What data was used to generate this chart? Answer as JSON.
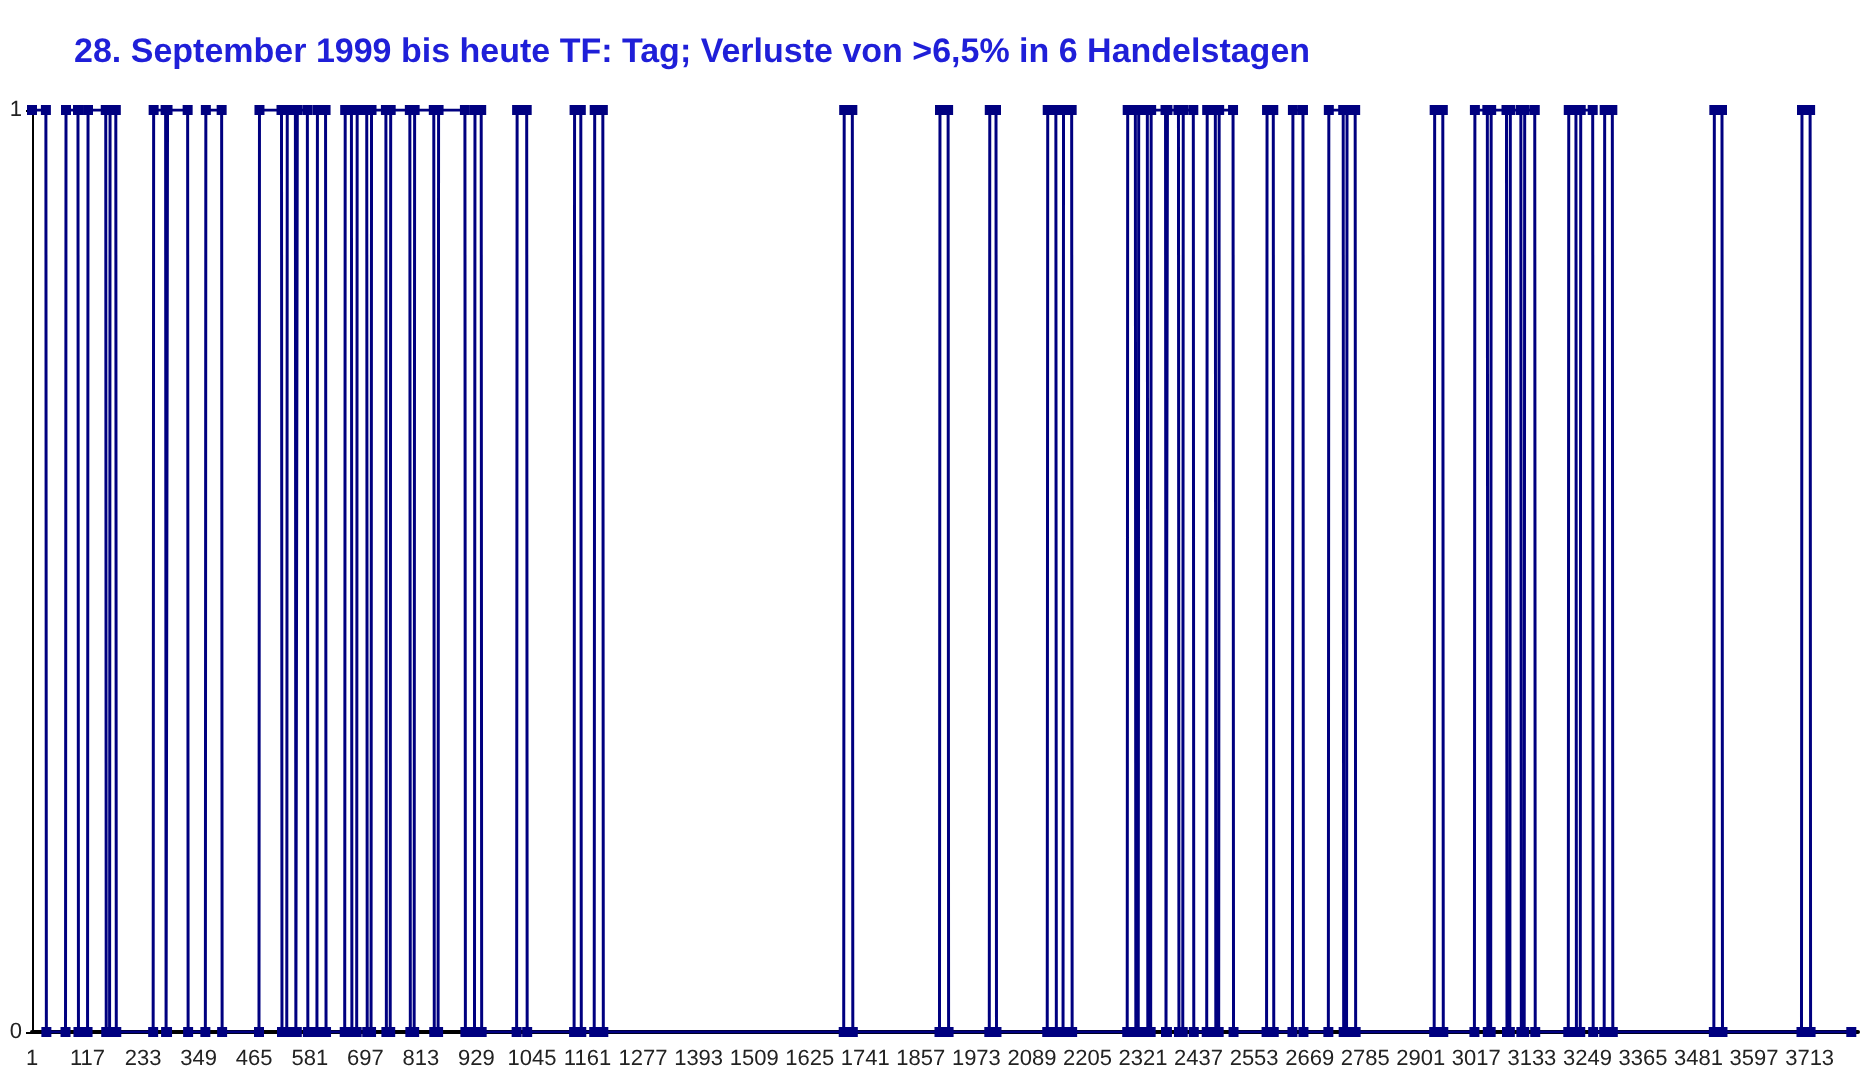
{
  "chart_data": {
    "type": "line",
    "title": "28. September 1999 bis heute TF: Tag; Verluste von >6,5% in 6 Handelstagen",
    "xlim": [
      1,
      3814
    ],
    "xticks": [
      1,
      117,
      233,
      349,
      465,
      581,
      697,
      813,
      929,
      1045,
      1161,
      1277,
      1393,
      1509,
      1625,
      1741,
      1857,
      1973,
      2089,
      2205,
      2321,
      2437,
      2553,
      2669,
      2785,
      2901,
      3017,
      3133,
      3249,
      3365,
      3481,
      3597,
      3713
    ],
    "ylim": [
      0,
      1
    ],
    "yticks": [
      0,
      1
    ],
    "grid": false,
    "marker": "square",
    "series": [
      {
        "color": "#000080",
        "x": [
          1,
          30,
          31,
          71,
          72,
          97,
          98,
          117,
          118,
          155,
          156,
          163,
          164,
          176,
          177,
          254,
          255,
          280,
          281,
          283,
          284,
          326,
          327,
          363,
          364,
          397,
          398,
          475,
          476,
          522,
          523,
          533,
          534,
          551,
          552,
          554,
          555,
          576,
          577,
          596,
          597,
          614,
          615,
          654,
          655,
          668,
          669,
          679,
          680,
          700,
          701,
          709,
          710,
          740,
          741,
          749,
          750,
          790,
          791,
          799,
          800,
          840,
          841,
          849,
          850,
          905,
          906,
          925,
          926,
          939,
          940,
          1013,
          1014,
          1034,
          1035,
          1133,
          1134,
          1147,
          1148,
          1175,
          1176,
          1193,
          1194,
          1696,
          1697,
          1714,
          1715,
          1896,
          1897,
          1914,
          1915,
          2000,
          2001,
          2014,
          2015,
          2121,
          2122,
          2139,
          2140,
          2154,
          2155,
          2172,
          2173,
          2288,
          2289,
          2305,
          2306,
          2311,
          2312,
          2330,
          2331,
          2337,
          2338,
          2368,
          2369,
          2371,
          2372,
          2395,
          2396,
          2404,
          2405,
          2426,
          2427,
          2454,
          2455,
          2472,
          2473,
          2479,
          2480,
          2509,
          2510,
          2579,
          2580,
          2593,
          2594,
          2633,
          2634,
          2655,
          2656,
          2708,
          2709,
          2739,
          2740,
          2746,
          2747,
          2764,
          2765,
          2929,
          2930,
          2947,
          2948,
          3013,
          3014,
          3040,
          3041,
          3047,
          3048,
          3080,
          3081,
          3087,
          3088,
          3110,
          3111,
          3117,
          3118,
          3139,
          3140,
          3209,
          3210,
          3225,
          3226,
          3234,
          3235,
          3260,
          3261,
          3284,
          3285,
          3301,
          3302,
          3513,
          3514,
          3530,
          3531,
          3696,
          3697,
          3714,
          3715,
          3800
        ],
        "values": [
          1,
          1,
          0,
          0,
          1,
          1,
          0,
          0,
          1,
          1,
          0,
          0,
          1,
          1,
          0,
          0,
          1,
          1,
          0,
          0,
          1,
          1,
          0,
          0,
          1,
          1,
          0,
          0,
          1,
          1,
          0,
          0,
          1,
          1,
          0,
          0,
          1,
          1,
          0,
          0,
          1,
          1,
          0,
          0,
          1,
          1,
          0,
          0,
          1,
          1,
          0,
          0,
          1,
          1,
          0,
          0,
          1,
          1,
          0,
          0,
          1,
          1,
          0,
          0,
          1,
          1,
          0,
          0,
          1,
          1,
          0,
          0,
          1,
          1,
          0,
          0,
          1,
          1,
          0,
          0,
          1,
          1,
          0,
          0,
          1,
          1,
          0,
          0,
          1,
          1,
          0,
          0,
          1,
          1,
          0,
          0,
          1,
          1,
          0,
          0,
          1,
          1,
          0,
          0,
          1,
          1,
          0,
          0,
          1,
          1,
          0,
          0,
          1,
          1,
          0,
          0,
          1,
          1,
          0,
          0,
          1,
          1,
          0,
          0,
          1,
          1,
          0,
          0,
          1,
          1,
          0,
          0,
          1,
          1,
          0,
          0,
          1,
          1,
          0,
          0,
          1,
          1,
          0,
          0,
          1,
          1,
          0,
          0,
          1,
          1,
          0,
          0,
          1,
          1,
          0,
          0,
          1,
          1,
          0,
          0,
          1,
          1,
          0,
          0,
          1,
          1,
          0,
          0,
          1,
          1,
          0,
          0,
          1,
          1,
          0,
          0,
          1,
          1,
          0,
          0,
          1,
          1,
          0,
          0,
          1,
          1,
          0,
          0
        ]
      }
    ]
  }
}
